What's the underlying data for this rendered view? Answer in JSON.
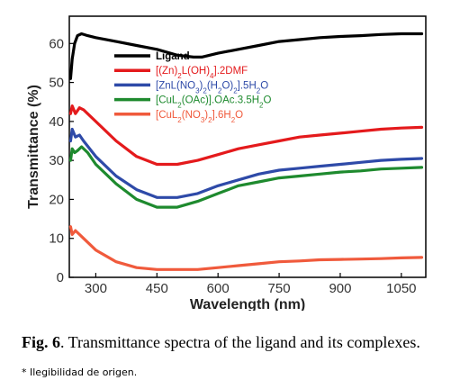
{
  "chart_data": {
    "type": "line",
    "title": "",
    "xlabel": "Wavelength (nm)",
    "ylabel": "Transmittance (%)",
    "xlim": [
      235,
      1110
    ],
    "ylim": [
      0,
      67
    ],
    "xticks": [
      300,
      450,
      600,
      750,
      900,
      1050
    ],
    "yticks": [
      0,
      10,
      20,
      30,
      40,
      50,
      60
    ],
    "grid": false,
    "legend_position": "top-center",
    "series": [
      {
        "name": "Ligand",
        "legend_parts": [
          {
            "t": "Ligand",
            "sub": false
          }
        ],
        "color": "#000000",
        "x": [
          238,
          242,
          248,
          255,
          265,
          280,
          300,
          350,
          400,
          450,
          500,
          540,
          560,
          600,
          650,
          700,
          750,
          800,
          850,
          900,
          950,
          1000,
          1050,
          1100
        ],
        "y": [
          51,
          56,
          60,
          62,
          62.5,
          62,
          61.5,
          60.5,
          59.5,
          58.5,
          57,
          56.5,
          56.5,
          57.5,
          58.5,
          59.5,
          60.5,
          61,
          61.5,
          61.8,
          62,
          62.3,
          62.5,
          62.5
        ]
      },
      {
        "name": "[(Zn)2L(OH)4].2DMF",
        "legend_parts": [
          {
            "t": "[(Zn)",
            "sub": false
          },
          {
            "t": "2",
            "sub": true
          },
          {
            "t": "L(OH)",
            "sub": false
          },
          {
            "t": "4",
            "sub": true
          },
          {
            "t": "].2DMF",
            "sub": false
          }
        ],
        "color": "#e41a1c",
        "x": [
          238,
          242,
          250,
          260,
          270,
          300,
          350,
          400,
          450,
          500,
          550,
          600,
          650,
          700,
          750,
          800,
          850,
          900,
          950,
          1000,
          1050,
          1100
        ],
        "y": [
          42,
          44,
          42,
          43.5,
          43,
          40,
          35,
          31,
          29,
          29,
          30,
          31.5,
          33,
          34,
          35,
          36,
          36.5,
          37,
          37.5,
          38,
          38.3,
          38.5
        ]
      },
      {
        "name": "[ZnL(NO3)2(H2O)2].5H2O",
        "legend_parts": [
          {
            "t": "[ZnL(NO",
            "sub": false
          },
          {
            "t": "3",
            "sub": true
          },
          {
            "t": ")",
            "sub": false
          },
          {
            "t": "2",
            "sub": true
          },
          {
            "t": "(H",
            "sub": false
          },
          {
            "t": "2",
            "sub": true
          },
          {
            "t": "O)",
            "sub": false
          },
          {
            "t": "2",
            "sub": true
          },
          {
            "t": "].5H",
            "sub": false
          },
          {
            "t": "2",
            "sub": true
          },
          {
            "t": "O",
            "sub": false
          }
        ],
        "color": "#2e4aa8",
        "x": [
          238,
          242,
          250,
          260,
          270,
          300,
          350,
          400,
          450,
          500,
          550,
          600,
          650,
          700,
          750,
          800,
          850,
          900,
          950,
          1000,
          1050,
          1100
        ],
        "y": [
          35,
          38,
          36,
          36.5,
          35,
          31,
          26,
          22.5,
          20.5,
          20.5,
          21.5,
          23.5,
          25,
          26.5,
          27.5,
          28,
          28.5,
          29,
          29.5,
          30,
          30.3,
          30.5
        ]
      },
      {
        "name": "[CuL2(OAc)].OAc.3.5H2O",
        "legend_parts": [
          {
            "t": "[CuL",
            "sub": false
          },
          {
            "t": "2",
            "sub": true
          },
          {
            "t": "(OAc)].OAc.3.5H",
            "sub": false
          },
          {
            "t": "2",
            "sub": true
          },
          {
            "t": "O",
            "sub": false
          }
        ],
        "color": "#1e8a2e",
        "x": [
          238,
          242,
          248,
          255,
          265,
          280,
          300,
          350,
          400,
          450,
          500,
          550,
          600,
          650,
          700,
          750,
          800,
          850,
          900,
          950,
          1000,
          1050,
          1100
        ],
        "y": [
          30,
          33,
          32,
          32.5,
          33.5,
          32,
          29,
          24,
          20,
          18,
          18,
          19.5,
          21.5,
          23.5,
          24.5,
          25.5,
          26,
          26.5,
          27,
          27.3,
          27.8,
          28,
          28.2
        ]
      },
      {
        "name": "[CuL2(NO3)2].6H2O",
        "legend_parts": [
          {
            "t": "[CuL",
            "sub": false
          },
          {
            "t": "2",
            "sub": true
          },
          {
            "t": "(NO",
            "sub": false
          },
          {
            "t": "3",
            "sub": true
          },
          {
            "t": ")",
            "sub": false
          },
          {
            "t": "2",
            "sub": true
          },
          {
            "t": "].6H",
            "sub": false
          },
          {
            "t": "2",
            "sub": true
          },
          {
            "t": "O",
            "sub": false
          }
        ],
        "color": "#f05a3c",
        "x": [
          238,
          242,
          250,
          260,
          270,
          300,
          350,
          400,
          450,
          500,
          550,
          600,
          650,
          700,
          750,
          800,
          850,
          900,
          950,
          1000,
          1050,
          1100
        ],
        "y": [
          13,
          11,
          12,
          11,
          10,
          7,
          4,
          2.5,
          2,
          2,
          2,
          2.5,
          3,
          3.5,
          4,
          4.2,
          4.5,
          4.6,
          4.7,
          4.8,
          5,
          5.1
        ]
      }
    ]
  },
  "caption": {
    "label": "Fig. 6",
    "text": ". Transmittance spectra of the ligand and its complexes."
  },
  "note": "* Ilegibilidad de origen."
}
